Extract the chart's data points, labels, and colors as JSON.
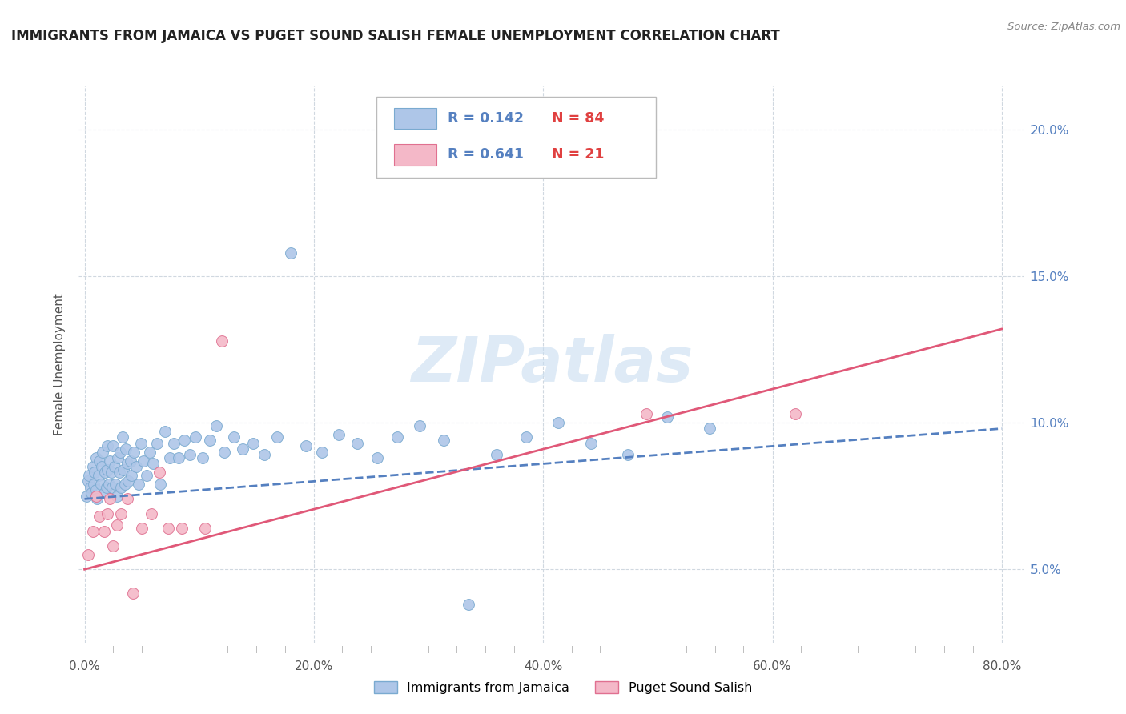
{
  "title": "IMMIGRANTS FROM JAMAICA VS PUGET SOUND SALISH FEMALE UNEMPLOYMENT CORRELATION CHART",
  "source": "Source: ZipAtlas.com",
  "ylabel": "Female Unemployment",
  "xlim": [
    -0.005,
    0.82
  ],
  "ylim": [
    0.025,
    0.215
  ],
  "ytick_labels": [
    "5.0%",
    "10.0%",
    "15.0%",
    "20.0%"
  ],
  "ytick_values": [
    0.05,
    0.1,
    0.15,
    0.2
  ],
  "xtick_labels": [
    "0.0%",
    "",
    "",
    "",
    "",
    "",
    "",
    "",
    "20.0%",
    "",
    "",
    "",
    "",
    "",
    "",
    "",
    "40.0%",
    "",
    "",
    "",
    "",
    "",
    "",
    "",
    "60.0%",
    "",
    "",
    "",
    "",
    "",
    "",
    "",
    "80.0%"
  ],
  "xtick_values": [
    0.0,
    0.025,
    0.05,
    0.075,
    0.1,
    0.125,
    0.15,
    0.175,
    0.2,
    0.225,
    0.25,
    0.275,
    0.3,
    0.325,
    0.35,
    0.375,
    0.4,
    0.425,
    0.45,
    0.475,
    0.5,
    0.525,
    0.55,
    0.575,
    0.6,
    0.625,
    0.65,
    0.675,
    0.7,
    0.725,
    0.75,
    0.775,
    0.8
  ],
  "legend_blue_r": "R = 0.142",
  "legend_blue_n": "N = 84",
  "legend_pink_r": "R = 0.641",
  "legend_pink_n": "N = 21",
  "blue_color": "#aec6e8",
  "blue_edge_color": "#7aaad0",
  "pink_color": "#f4b8c8",
  "pink_edge_color": "#e07090",
  "blue_line_color": "#5580c0",
  "pink_line_color": "#e05878",
  "watermark": "ZIPatlas",
  "watermark_color": "#c8ddf0",
  "background_color": "#ffffff",
  "grid_color": "#d0d8e0",
  "title_color": "#222222",
  "right_tick_color": "#5580c0",
  "blue_scatter_x": [
    0.002,
    0.003,
    0.004,
    0.005,
    0.006,
    0.007,
    0.008,
    0.009,
    0.01,
    0.01,
    0.011,
    0.012,
    0.013,
    0.014,
    0.015,
    0.016,
    0.017,
    0.018,
    0.019,
    0.02,
    0.02,
    0.021,
    0.022,
    0.023,
    0.024,
    0.025,
    0.026,
    0.027,
    0.028,
    0.029,
    0.03,
    0.031,
    0.032,
    0.033,
    0.034,
    0.035,
    0.036,
    0.037,
    0.038,
    0.04,
    0.041,
    0.043,
    0.045,
    0.047,
    0.049,
    0.051,
    0.054,
    0.057,
    0.06,
    0.063,
    0.066,
    0.07,
    0.074,
    0.078,
    0.082,
    0.087,
    0.092,
    0.097,
    0.103,
    0.109,
    0.115,
    0.122,
    0.13,
    0.138,
    0.147,
    0.157,
    0.168,
    0.18,
    0.193,
    0.207,
    0.222,
    0.238,
    0.255,
    0.273,
    0.292,
    0.313,
    0.335,
    0.359,
    0.385,
    0.413,
    0.442,
    0.474,
    0.508,
    0.545
  ],
  "blue_scatter_y": [
    0.075,
    0.08,
    0.082,
    0.078,
    0.076,
    0.085,
    0.079,
    0.083,
    0.077,
    0.088,
    0.074,
    0.082,
    0.087,
    0.079,
    0.085,
    0.09,
    0.076,
    0.083,
    0.078,
    0.084,
    0.092,
    0.079,
    0.087,
    0.083,
    0.078,
    0.092,
    0.085,
    0.079,
    0.075,
    0.088,
    0.083,
    0.09,
    0.078,
    0.095,
    0.084,
    0.079,
    0.091,
    0.086,
    0.08,
    0.087,
    0.082,
    0.09,
    0.085,
    0.079,
    0.093,
    0.087,
    0.082,
    0.09,
    0.086,
    0.093,
    0.079,
    0.097,
    0.088,
    0.093,
    0.088,
    0.094,
    0.089,
    0.095,
    0.088,
    0.094,
    0.099,
    0.09,
    0.095,
    0.091,
    0.093,
    0.089,
    0.095,
    0.158,
    0.092,
    0.09,
    0.096,
    0.093,
    0.088,
    0.095,
    0.099,
    0.094,
    0.038,
    0.089,
    0.095,
    0.1,
    0.093,
    0.089,
    0.102,
    0.098
  ],
  "pink_scatter_x": [
    0.003,
    0.007,
    0.01,
    0.013,
    0.017,
    0.02,
    0.022,
    0.025,
    0.028,
    0.032,
    0.037,
    0.042,
    0.05,
    0.058,
    0.065,
    0.073,
    0.085,
    0.105,
    0.12,
    0.49,
    0.62
  ],
  "pink_scatter_y": [
    0.055,
    0.063,
    0.075,
    0.068,
    0.063,
    0.069,
    0.074,
    0.058,
    0.065,
    0.069,
    0.074,
    0.042,
    0.064,
    0.069,
    0.083,
    0.064,
    0.064,
    0.064,
    0.128,
    0.103,
    0.103
  ],
  "blue_line_x": [
    0.0,
    0.8
  ],
  "blue_line_y": [
    0.074,
    0.098
  ],
  "pink_line_x": [
    0.0,
    0.8
  ],
  "pink_line_y": [
    0.05,
    0.132
  ]
}
